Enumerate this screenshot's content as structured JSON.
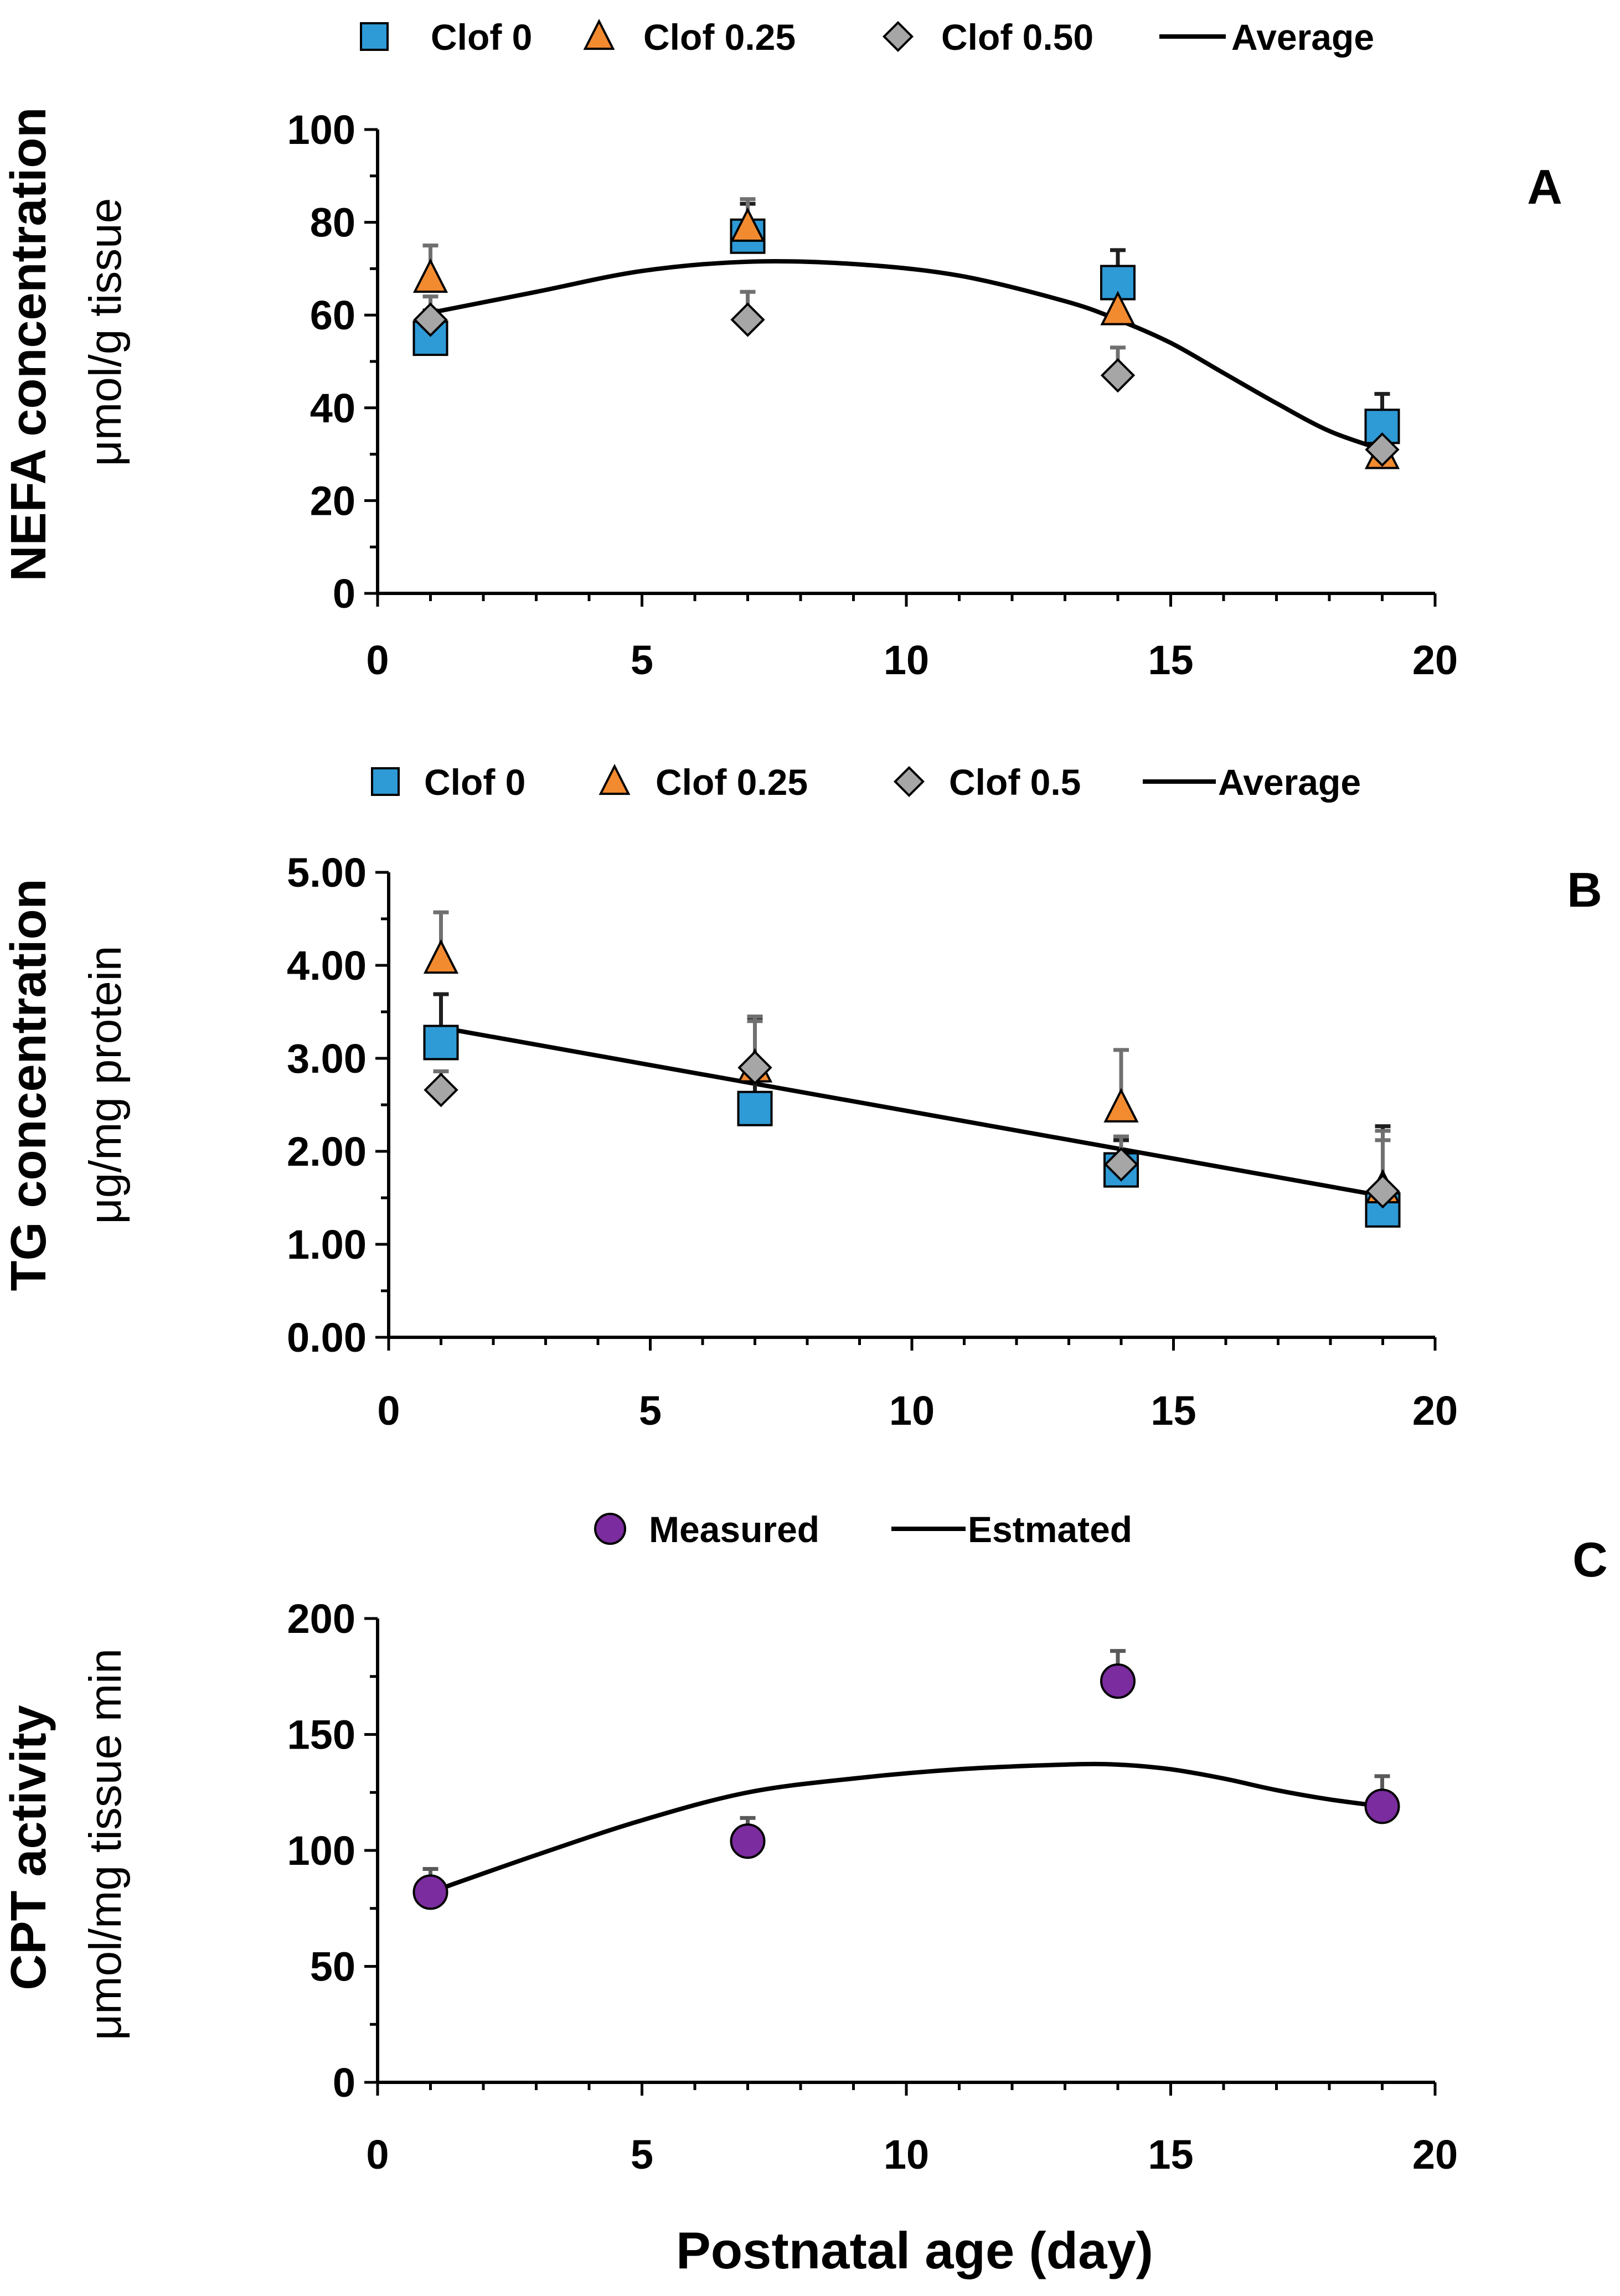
{
  "x_axis_label": "Postnatal age (day)",
  "chart_data": [
    {
      "type": "scatter",
      "panel": "A",
      "ylabel_bold": "NEFA concentration",
      "ylabel_units": "μmol/g tissue",
      "xlabel": "Postnatal age (day)",
      "xlim": [
        0,
        20
      ],
      "x_ticks": [
        "0",
        "5",
        "10",
        "15",
        "20"
      ],
      "ylim": [
        0,
        100
      ],
      "y_ticks": [
        "0",
        "20",
        "40",
        "60",
        "80",
        "100"
      ],
      "legend": [
        "Clof 0",
        "Clof 0.25",
        "Clof 0.50",
        "Average"
      ],
      "legend_position": "top",
      "series": [
        {
          "name": "Clof 0",
          "marker": "square",
          "color": "#2E9AD6",
          "x": [
            1,
            7,
            14,
            19
          ],
          "y": [
            55,
            77,
            67,
            36
          ],
          "err": [
            6,
            7,
            7,
            7
          ]
        },
        {
          "name": "Clof 0.25",
          "marker": "triangle",
          "color": "#F28A30",
          "x": [
            1,
            7,
            14,
            19
          ],
          "y": [
            68,
            79,
            61,
            30
          ],
          "err": [
            7,
            6,
            6,
            5
          ]
        },
        {
          "name": "Clof 0.50",
          "marker": "diamond",
          "color": "#A6A6A6",
          "x": [
            1,
            7,
            14,
            19
          ],
          "y": [
            59,
            59,
            47,
            31
          ],
          "err": [
            5,
            6,
            6,
            5
          ]
        }
      ],
      "fit": {
        "name": "Average",
        "x": [
          1,
          3,
          5,
          7,
          9,
          11,
          13,
          14,
          15,
          16,
          17,
          18,
          19
        ],
        "y": [
          60.5,
          65,
          69.5,
          71.5,
          71,
          68.5,
          63,
          59,
          54,
          47.5,
          41,
          35,
          31
        ]
      }
    },
    {
      "type": "scatter",
      "panel": "B",
      "ylabel_bold": "TG concentration",
      "ylabel_units": "μg/mg protein",
      "xlabel": "Postnatal age (day)",
      "xlim": [
        0,
        20
      ],
      "x_ticks": [
        "0",
        "5",
        "10",
        "15",
        "20"
      ],
      "ylim": [
        0,
        5
      ],
      "y_ticks": [
        "0.00",
        "1.00",
        "2.00",
        "3.00",
        "4.00",
        "5.00"
      ],
      "legend": [
        "Clof 0",
        "Clof 0.25",
        "Clof 0.5",
        "Average"
      ],
      "legend_position": "top",
      "series": [
        {
          "name": "Clof 0",
          "marker": "square",
          "color": "#2E9AD6",
          "x": [
            1,
            7,
            14,
            19
          ],
          "y": [
            3.17,
            2.46,
            1.8,
            1.37
          ],
          "err": [
            0.52,
            0.98,
            0.32,
            0.9
          ]
        },
        {
          "name": "Clof 0.25",
          "marker": "triangle",
          "color": "#F28A30",
          "x": [
            1,
            7,
            14,
            19
          ],
          "y": [
            4.07,
            2.9,
            2.47,
            1.6
          ],
          "err": [
            0.5,
            0.55,
            0.62,
            0.62
          ]
        },
        {
          "name": "Clof 0.5",
          "marker": "diamond",
          "color": "#A6A6A6",
          "x": [
            1,
            7,
            14,
            19
          ],
          "y": [
            2.66,
            2.9,
            1.86,
            1.57
          ],
          "err": [
            0.2,
            0.5,
            0.3,
            0.55
          ]
        }
      ],
      "fit": {
        "name": "Average",
        "x": [
          1,
          19
        ],
        "y": [
          3.33,
          1.52
        ]
      }
    },
    {
      "type": "scatter",
      "panel": "C",
      "ylabel_bold": "CPT activity",
      "ylabel_units": "μmol/mg tissue min",
      "xlabel": "Postnatal age (day)",
      "xlim": [
        0,
        20
      ],
      "x_ticks": [
        "0",
        "5",
        "10",
        "15",
        "20"
      ],
      "ylim": [
        0,
        200
      ],
      "y_ticks": [
        "0",
        "50",
        "100",
        "150",
        "200"
      ],
      "legend": [
        "Measured",
        "Estmated"
      ],
      "legend_position": "top",
      "series": [
        {
          "name": "Measured",
          "marker": "circle",
          "color": "#7B2C9E",
          "x": [
            1,
            7,
            14,
            19
          ],
          "y": [
            82,
            104,
            173,
            119
          ],
          "err": [
            10,
            10,
            13,
            13
          ]
        }
      ],
      "fit": {
        "name": "Estmated",
        "x": [
          1,
          3,
          5,
          7,
          9,
          11,
          13,
          14,
          15,
          16,
          17,
          18,
          19
        ],
        "y": [
          82,
          98,
          113,
          125,
          131,
          135,
          137,
          137,
          135,
          131,
          126,
          122,
          119
        ]
      }
    }
  ]
}
